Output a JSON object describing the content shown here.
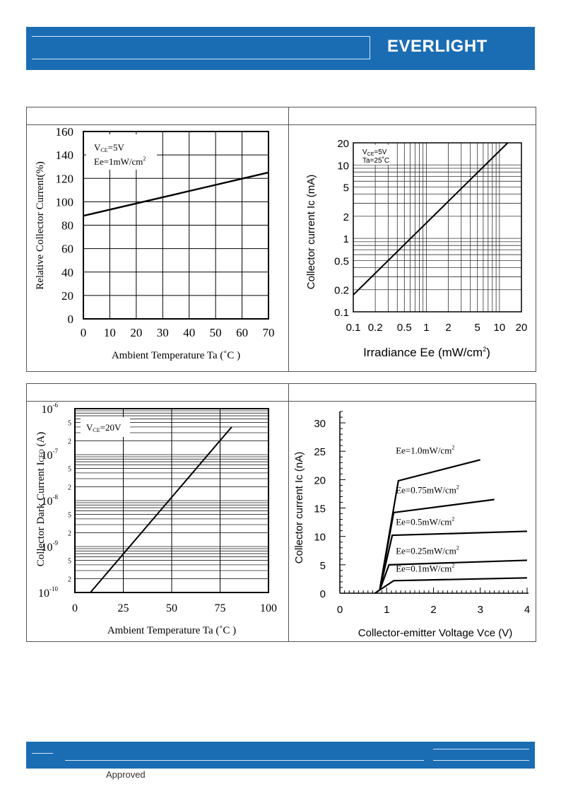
{
  "header": {
    "logo_text": "EVERLIGHT"
  },
  "footer": {
    "approved_label": "Approved",
    "approved_top": ""
  },
  "chart_data": [
    {
      "type": "line",
      "xlabel": "Ambient Temperature Ta (˚C )",
      "ylabel": "Relative Collector Current(%)",
      "annotations": [
        "V",
        "CE",
        "=5V",
        "Ee=1mW/cm",
        "2"
      ],
      "xlim": [
        0,
        70
      ],
      "ylim": [
        0,
        160
      ],
      "x_ticks": [
        "0",
        "10",
        "20",
        "30",
        "40",
        "50",
        "60",
        "70"
      ],
      "y_ticks": [
        "0",
        "20",
        "40",
        "60",
        "80",
        "100",
        "120",
        "140",
        "160"
      ],
      "series": [
        {
          "x": [
            0,
            70
          ],
          "y": [
            88,
            125
          ]
        }
      ]
    },
    {
      "type": "line",
      "xscale": "log",
      "yscale": "log",
      "xlabel": "Irradiance  Ee (mW/cm",
      "xlabel_sup": "2",
      "xlabel_end": ")",
      "ylabel": "Collector  current  Ic  (mA)",
      "annotations": [
        "V",
        "CE",
        "=5V",
        "Ta=25˚C"
      ],
      "xlim": [
        0.1,
        20
      ],
      "ylim": [
        0.1,
        20
      ],
      "x_ticks": [
        "0.1",
        "0.2",
        "0.5",
        "1",
        "2",
        "5",
        "10",
        "20"
      ],
      "y_ticks": [
        "0.1",
        "0.2",
        "0.5",
        "1",
        "2",
        "5",
        "10",
        "20"
      ],
      "series": [
        {
          "x": [
            0.1,
            13
          ],
          "y": [
            0.17,
            20
          ]
        }
      ]
    },
    {
      "type": "line",
      "yscale": "log",
      "xlabel": "Ambient Temperature Ta (˚C )",
      "ylabel": "Collector Dark Current I",
      "ylabel_sub": "CEO",
      "ylabel_end": " (A)",
      "annotations": [
        "V",
        "CE",
        "=20V"
      ],
      "xlim": [
        0,
        100
      ],
      "ylim": [
        1e-10,
        1e-06
      ],
      "x_ticks": [
        "0",
        "25",
        "50",
        "75",
        "100"
      ],
      "y_ticks": [
        {
          "base": "10",
          "exp": "-6"
        },
        {
          "base": "5",
          "exp": ""
        },
        {
          "base": "2",
          "exp": ""
        },
        {
          "base": "10",
          "exp": "-7"
        },
        {
          "base": "5",
          "exp": ""
        },
        {
          "base": "2",
          "exp": ""
        },
        {
          "base": "10",
          "exp": "-8"
        },
        {
          "base": "5",
          "exp": ""
        },
        {
          "base": "2",
          "exp": ""
        },
        {
          "base": "10",
          "exp": "-9"
        },
        {
          "base": "5",
          "exp": ""
        },
        {
          "base": "2",
          "exp": ""
        },
        {
          "base": "10",
          "exp": "-10"
        }
      ],
      "series": [
        {
          "x": [
            8,
            81
          ],
          "y": [
            1e-10,
            4e-07
          ]
        }
      ]
    },
    {
      "type": "line",
      "xlabel": "Collector-emitter Voltage Vce (V)",
      "ylabel": "Collector current Ic (nA)",
      "xlim": [
        0,
        4
      ],
      "ylim": [
        0,
        32
      ],
      "x_ticks": [
        "0",
        "1",
        "2",
        "3",
        "4"
      ],
      "y_ticks": [
        "0",
        "5",
        "10",
        "15",
        "20",
        "25",
        "30"
      ],
      "series": [
        {
          "name": "Ee=1.0mW/cm",
          "sup": "2",
          "x": [
            0.85,
            1.25,
            3.0
          ],
          "y": [
            0.5,
            19.8,
            23.5
          ]
        },
        {
          "name": "Ee=0.75mW/cm",
          "sup": "2",
          "x": [
            0.85,
            1.15,
            3.3
          ],
          "y": [
            0.5,
            14.2,
            16.5
          ]
        },
        {
          "name": "Ee=0.5mW/cm",
          "sup": "2",
          "x": [
            0.85,
            1.12,
            4.0
          ],
          "y": [
            0.5,
            10.2,
            10.9
          ]
        },
        {
          "name": "Ee=0.25mW/cm",
          "sup": "2",
          "x": [
            0.85,
            1.05,
            4.0
          ],
          "y": [
            0.5,
            5.0,
            5.8
          ]
        },
        {
          "name": "Ee=0.1mW/cm",
          "sup": "2",
          "x": [
            0.75,
            1.15,
            4.0
          ],
          "y": [
            0.0,
            2.2,
            2.7
          ]
        }
      ]
    }
  ]
}
